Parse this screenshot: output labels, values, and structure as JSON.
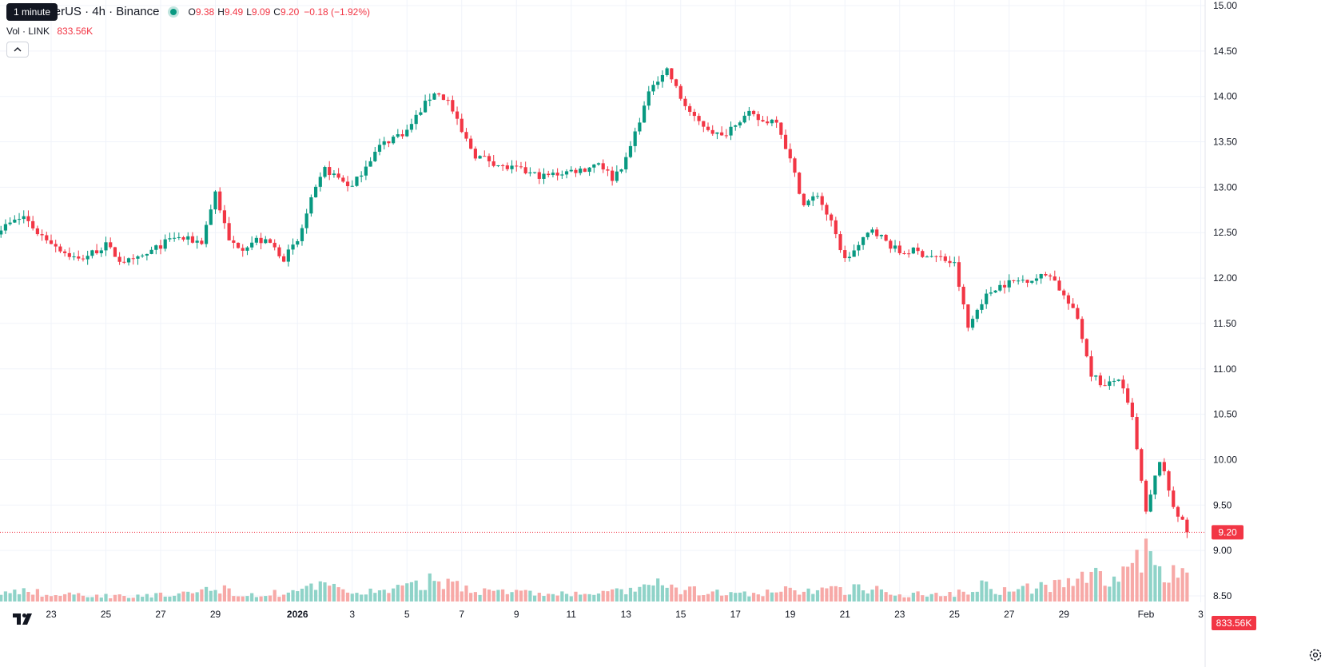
{
  "legend": {
    "symbol": "ink / TetherUS · 4h · Binance",
    "open_label": "O",
    "open": "9.38",
    "high_label": "H",
    "high": "9.49",
    "low_label": "L",
    "low": "9.09",
    "close_label": "C",
    "close": "9.20",
    "change": "−0.18 (−1.92%)"
  },
  "tooltip": "1 minute",
  "volume_legend": {
    "name": "Vol · LINK",
    "value": "833.56K"
  },
  "collapse_icon": "chevron-up-icon",
  "logo_icon": "tradingview-logo-icon",
  "settings_icon": "gear-icon",
  "colors": {
    "up": "#089981",
    "down": "#f23645",
    "up_vol": "#8fd3c8",
    "down_vol": "#f7a9a7",
    "grid": "#f0f3fa",
    "text": "#131722"
  },
  "chart_data": {
    "type": "candlestick",
    "symbol": "LINK / TetherUS",
    "interval": "4h",
    "exchange": "Binance",
    "ylim": [
      8.5,
      15.0
    ],
    "yticks": [
      "15.00",
      "14.50",
      "14.00",
      "13.50",
      "13.00",
      "12.50",
      "12.00",
      "11.50",
      "11.00",
      "10.50",
      "10.00",
      "9.50",
      "9.00",
      "8.50"
    ],
    "xticks": [
      {
        "label": "23",
        "date": "2025-12-23"
      },
      {
        "label": "25",
        "date": "2025-12-25"
      },
      {
        "label": "27",
        "date": "2025-12-27"
      },
      {
        "label": "29",
        "date": "2025-12-29"
      },
      {
        "label": "2026",
        "date": "2026-01-01",
        "bold": true
      },
      {
        "label": "3",
        "date": "2026-01-03"
      },
      {
        "label": "5",
        "date": "2026-01-05"
      },
      {
        "label": "7",
        "date": "2026-01-07"
      },
      {
        "label": "9",
        "date": "2026-01-09"
      },
      {
        "label": "11",
        "date": "2026-01-11"
      },
      {
        "label": "13",
        "date": "2026-01-13"
      },
      {
        "label": "15",
        "date": "2026-01-15"
      },
      {
        "label": "17",
        "date": "2026-01-17"
      },
      {
        "label": "19",
        "date": "2026-01-19"
      },
      {
        "label": "21",
        "date": "2026-01-21"
      },
      {
        "label": "23",
        "date": "2026-01-23"
      },
      {
        "label": "25",
        "date": "2026-01-25"
      },
      {
        "label": "27",
        "date": "2026-01-27"
      },
      {
        "label": "29",
        "date": "2026-01-29"
      },
      {
        "label": "Feb",
        "date": "2026-02-01"
      },
      {
        "label": "3",
        "date": "2026-02-03"
      }
    ],
    "last_price": "9.20",
    "last_volume": "833.56K",
    "close_path": [
      [
        "2025-12-21",
        12.52
      ],
      [
        "2025-12-22",
        12.68
      ],
      [
        "2025-12-22T12",
        12.5
      ],
      [
        "2025-12-23",
        12.4
      ],
      [
        "2025-12-23T12",
        12.28
      ],
      [
        "2025-12-24",
        12.2
      ],
      [
        "2025-12-24T12",
        12.28
      ],
      [
        "2025-12-25",
        12.36
      ],
      [
        "2025-12-25T12",
        12.2
      ],
      [
        "2025-12-26",
        12.18
      ],
      [
        "2025-12-26T12",
        12.26
      ],
      [
        "2025-12-27",
        12.36
      ],
      [
        "2025-12-27T12",
        12.45
      ],
      [
        "2025-12-28",
        12.42
      ],
      [
        "2025-12-28T12",
        12.4
      ],
      [
        "2025-12-29",
        12.95
      ],
      [
        "2025-12-29T12",
        12.4
      ],
      [
        "2025-12-30",
        12.34
      ],
      [
        "2025-12-30T12",
        12.42
      ],
      [
        "2025-12-31",
        12.38
      ],
      [
        "2025-12-31T12",
        12.22
      ],
      [
        "2026-01-01",
        12.4
      ],
      [
        "2026-01-01T12",
        12.85
      ],
      [
        "2026-01-02",
        13.2
      ],
      [
        "2026-01-02T12",
        13.1
      ],
      [
        "2026-01-03",
        13.0
      ],
      [
        "2026-01-03T12",
        13.25
      ],
      [
        "2026-01-04",
        13.45
      ],
      [
        "2026-01-04T12",
        13.55
      ],
      [
        "2026-01-05",
        13.62
      ],
      [
        "2026-01-05T12",
        13.85
      ],
      [
        "2026-01-06",
        14.05
      ],
      [
        "2026-01-06T12",
        13.95
      ],
      [
        "2026-01-07",
        13.6
      ],
      [
        "2026-01-07T12",
        13.35
      ],
      [
        "2026-01-08",
        13.3
      ],
      [
        "2026-01-08T12",
        13.22
      ],
      [
        "2026-01-09",
        13.2
      ],
      [
        "2026-01-09T12",
        13.15
      ],
      [
        "2026-01-10",
        13.12
      ],
      [
        "2026-01-10T12",
        13.15
      ],
      [
        "2026-01-11",
        13.18
      ],
      [
        "2026-01-11T12",
        13.2
      ],
      [
        "2026-01-12",
        13.28
      ],
      [
        "2026-01-12T12",
        13.1
      ],
      [
        "2026-01-13",
        13.3
      ],
      [
        "2026-01-13T12",
        13.75
      ],
      [
        "2026-01-14",
        14.15
      ],
      [
        "2026-01-14T12",
        14.3
      ],
      [
        "2026-01-15",
        13.98
      ],
      [
        "2026-01-15T12",
        13.75
      ],
      [
        "2026-01-16",
        13.65
      ],
      [
        "2026-01-16T12",
        13.55
      ],
      [
        "2026-01-17",
        13.72
      ],
      [
        "2026-01-17T12",
        13.8
      ],
      [
        "2026-01-18",
        13.72
      ],
      [
        "2026-01-18T12",
        13.75
      ],
      [
        "2026-01-19",
        13.3
      ],
      [
        "2026-01-19T12",
        12.8
      ],
      [
        "2026-01-20",
        12.92
      ],
      [
        "2026-01-20T12",
        12.6
      ],
      [
        "2026-01-21",
        12.2
      ],
      [
        "2026-01-21T12",
        12.35
      ],
      [
        "2026-01-22",
        12.55
      ],
      [
        "2026-01-22T12",
        12.4
      ],
      [
        "2026-01-23",
        12.28
      ],
      [
        "2026-01-23T12",
        12.3
      ],
      [
        "2026-01-24",
        12.25
      ],
      [
        "2026-01-24T12",
        12.22
      ],
      [
        "2026-01-25",
        12.15
      ],
      [
        "2026-01-25T12",
        11.45
      ],
      [
        "2026-01-26",
        11.75
      ],
      [
        "2026-01-26T12",
        11.9
      ],
      [
        "2026-01-27",
        11.95
      ],
      [
        "2026-01-27T12",
        11.98
      ],
      [
        "2026-01-28",
        12.0
      ],
      [
        "2026-01-28T12",
        12.05
      ],
      [
        "2026-01-29",
        11.8
      ],
      [
        "2026-01-29T12",
        11.55
      ],
      [
        "2026-01-30",
        10.95
      ],
      [
        "2026-01-30T12",
        10.8
      ],
      [
        "2026-01-31",
        10.9
      ],
      [
        "2026-01-31T12",
        10.45
      ],
      [
        "2026-02-01",
        9.4
      ],
      [
        "2026-02-01T12",
        10.0
      ],
      [
        "2026-02-02",
        9.5
      ],
      [
        "2026-02-02T12",
        9.2
      ]
    ],
    "volume_ylim": [
      0,
      20
    ],
    "volume_path": [
      [
        "2025-12-21",
        1.5
      ],
      [
        "2025-12-22",
        2.5
      ],
      [
        "2025-12-23",
        1.3
      ],
      [
        "2025-12-24",
        1.5
      ],
      [
        "2025-12-25",
        1.2
      ],
      [
        "2025-12-26",
        1.4
      ],
      [
        "2025-12-27",
        1.3
      ],
      [
        "2025-12-28",
        1.5
      ],
      [
        "2025-12-29",
        3.0
      ],
      [
        "2025-12-30",
        1.5
      ],
      [
        "2025-12-31",
        1.6
      ],
      [
        "2026-01-01",
        2.2
      ],
      [
        "2026-01-02",
        3.2
      ],
      [
        "2026-01-03",
        2.0
      ],
      [
        "2026-01-04",
        2.2
      ],
      [
        "2026-01-05",
        2.8
      ],
      [
        "2026-01-06",
        4.5
      ],
      [
        "2026-01-07",
        3.5
      ],
      [
        "2026-01-08",
        2.0
      ],
      [
        "2026-01-09",
        2.0
      ],
      [
        "2026-01-10",
        1.6
      ],
      [
        "2026-01-11",
        1.5
      ],
      [
        "2026-01-12",
        1.8
      ],
      [
        "2026-01-13",
        2.0
      ],
      [
        "2026-01-14",
        3.6
      ],
      [
        "2026-01-15",
        2.5
      ],
      [
        "2026-01-16",
        2.0
      ],
      [
        "2026-01-17",
        1.5
      ],
      [
        "2026-01-18",
        1.6
      ],
      [
        "2026-01-19",
        2.5
      ],
      [
        "2026-01-20",
        2.2
      ],
      [
        "2026-01-21",
        2.5
      ],
      [
        "2026-01-22",
        2.8
      ],
      [
        "2026-01-23",
        1.6
      ],
      [
        "2026-01-24",
        1.5
      ],
      [
        "2026-01-25",
        1.8
      ],
      [
        "2026-01-26",
        3.5
      ],
      [
        "2026-01-27",
        2.0
      ],
      [
        "2026-01-28",
        3.0
      ],
      [
        "2026-01-29",
        3.5
      ],
      [
        "2026-01-30",
        5.5
      ],
      [
        "2026-01-31",
        4.5
      ],
      [
        "2026-02-01",
        10.0
      ],
      [
        "2026-02-02",
        5.5
      ]
    ]
  }
}
